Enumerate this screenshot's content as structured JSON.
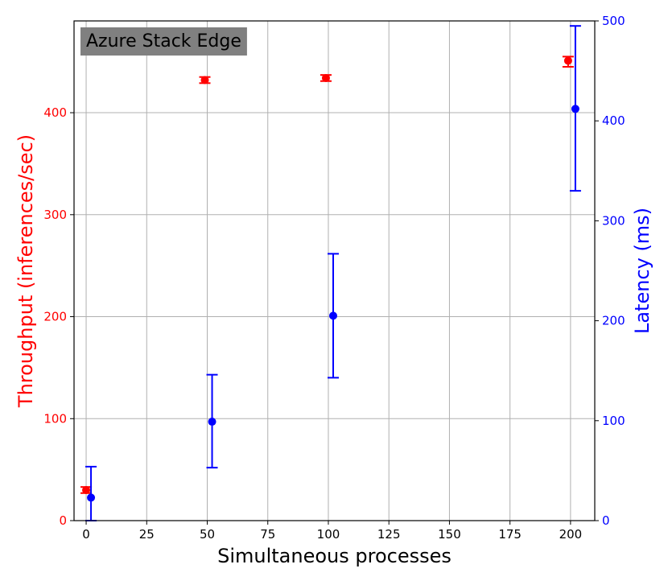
{
  "chart_data": {
    "type": "scatter",
    "annotation": "Azure Stack Edge",
    "xlabel": "Simultaneous processes",
    "ylabel_left": "Throughput (inferences/sec)",
    "ylabel_right": "Latency (ms)",
    "xlim": [
      -5,
      210
    ],
    "ylim_left": [
      0,
      490
    ],
    "ylim_right": [
      0,
      500
    ],
    "x_ticks": [
      0,
      25,
      50,
      75,
      100,
      125,
      150,
      175,
      200
    ],
    "y_left_ticks": [
      0,
      100,
      200,
      300,
      400
    ],
    "y_right_ticks": [
      0,
      100,
      200,
      300,
      400,
      500
    ],
    "grid": true,
    "colors": {
      "throughput": "#ff0000",
      "latency": "#0000ff",
      "annotation_bg": "#808080"
    },
    "series": [
      {
        "axis": "left",
        "x": [
          0,
          49,
          99,
          199
        ],
        "y": [
          30,
          432,
          434,
          451
        ],
        "yerr_low": [
          27,
          429,
          431,
          445
        ],
        "yerr_high": [
          33,
          435,
          437,
          455
        ]
      },
      {
        "axis": "right",
        "x": [
          2,
          52,
          102,
          202
        ],
        "y": [
          23,
          99,
          205,
          412
        ],
        "yerr_low": [
          0,
          53,
          143,
          330
        ],
        "yerr_high": [
          54,
          146,
          267,
          495
        ]
      }
    ]
  }
}
